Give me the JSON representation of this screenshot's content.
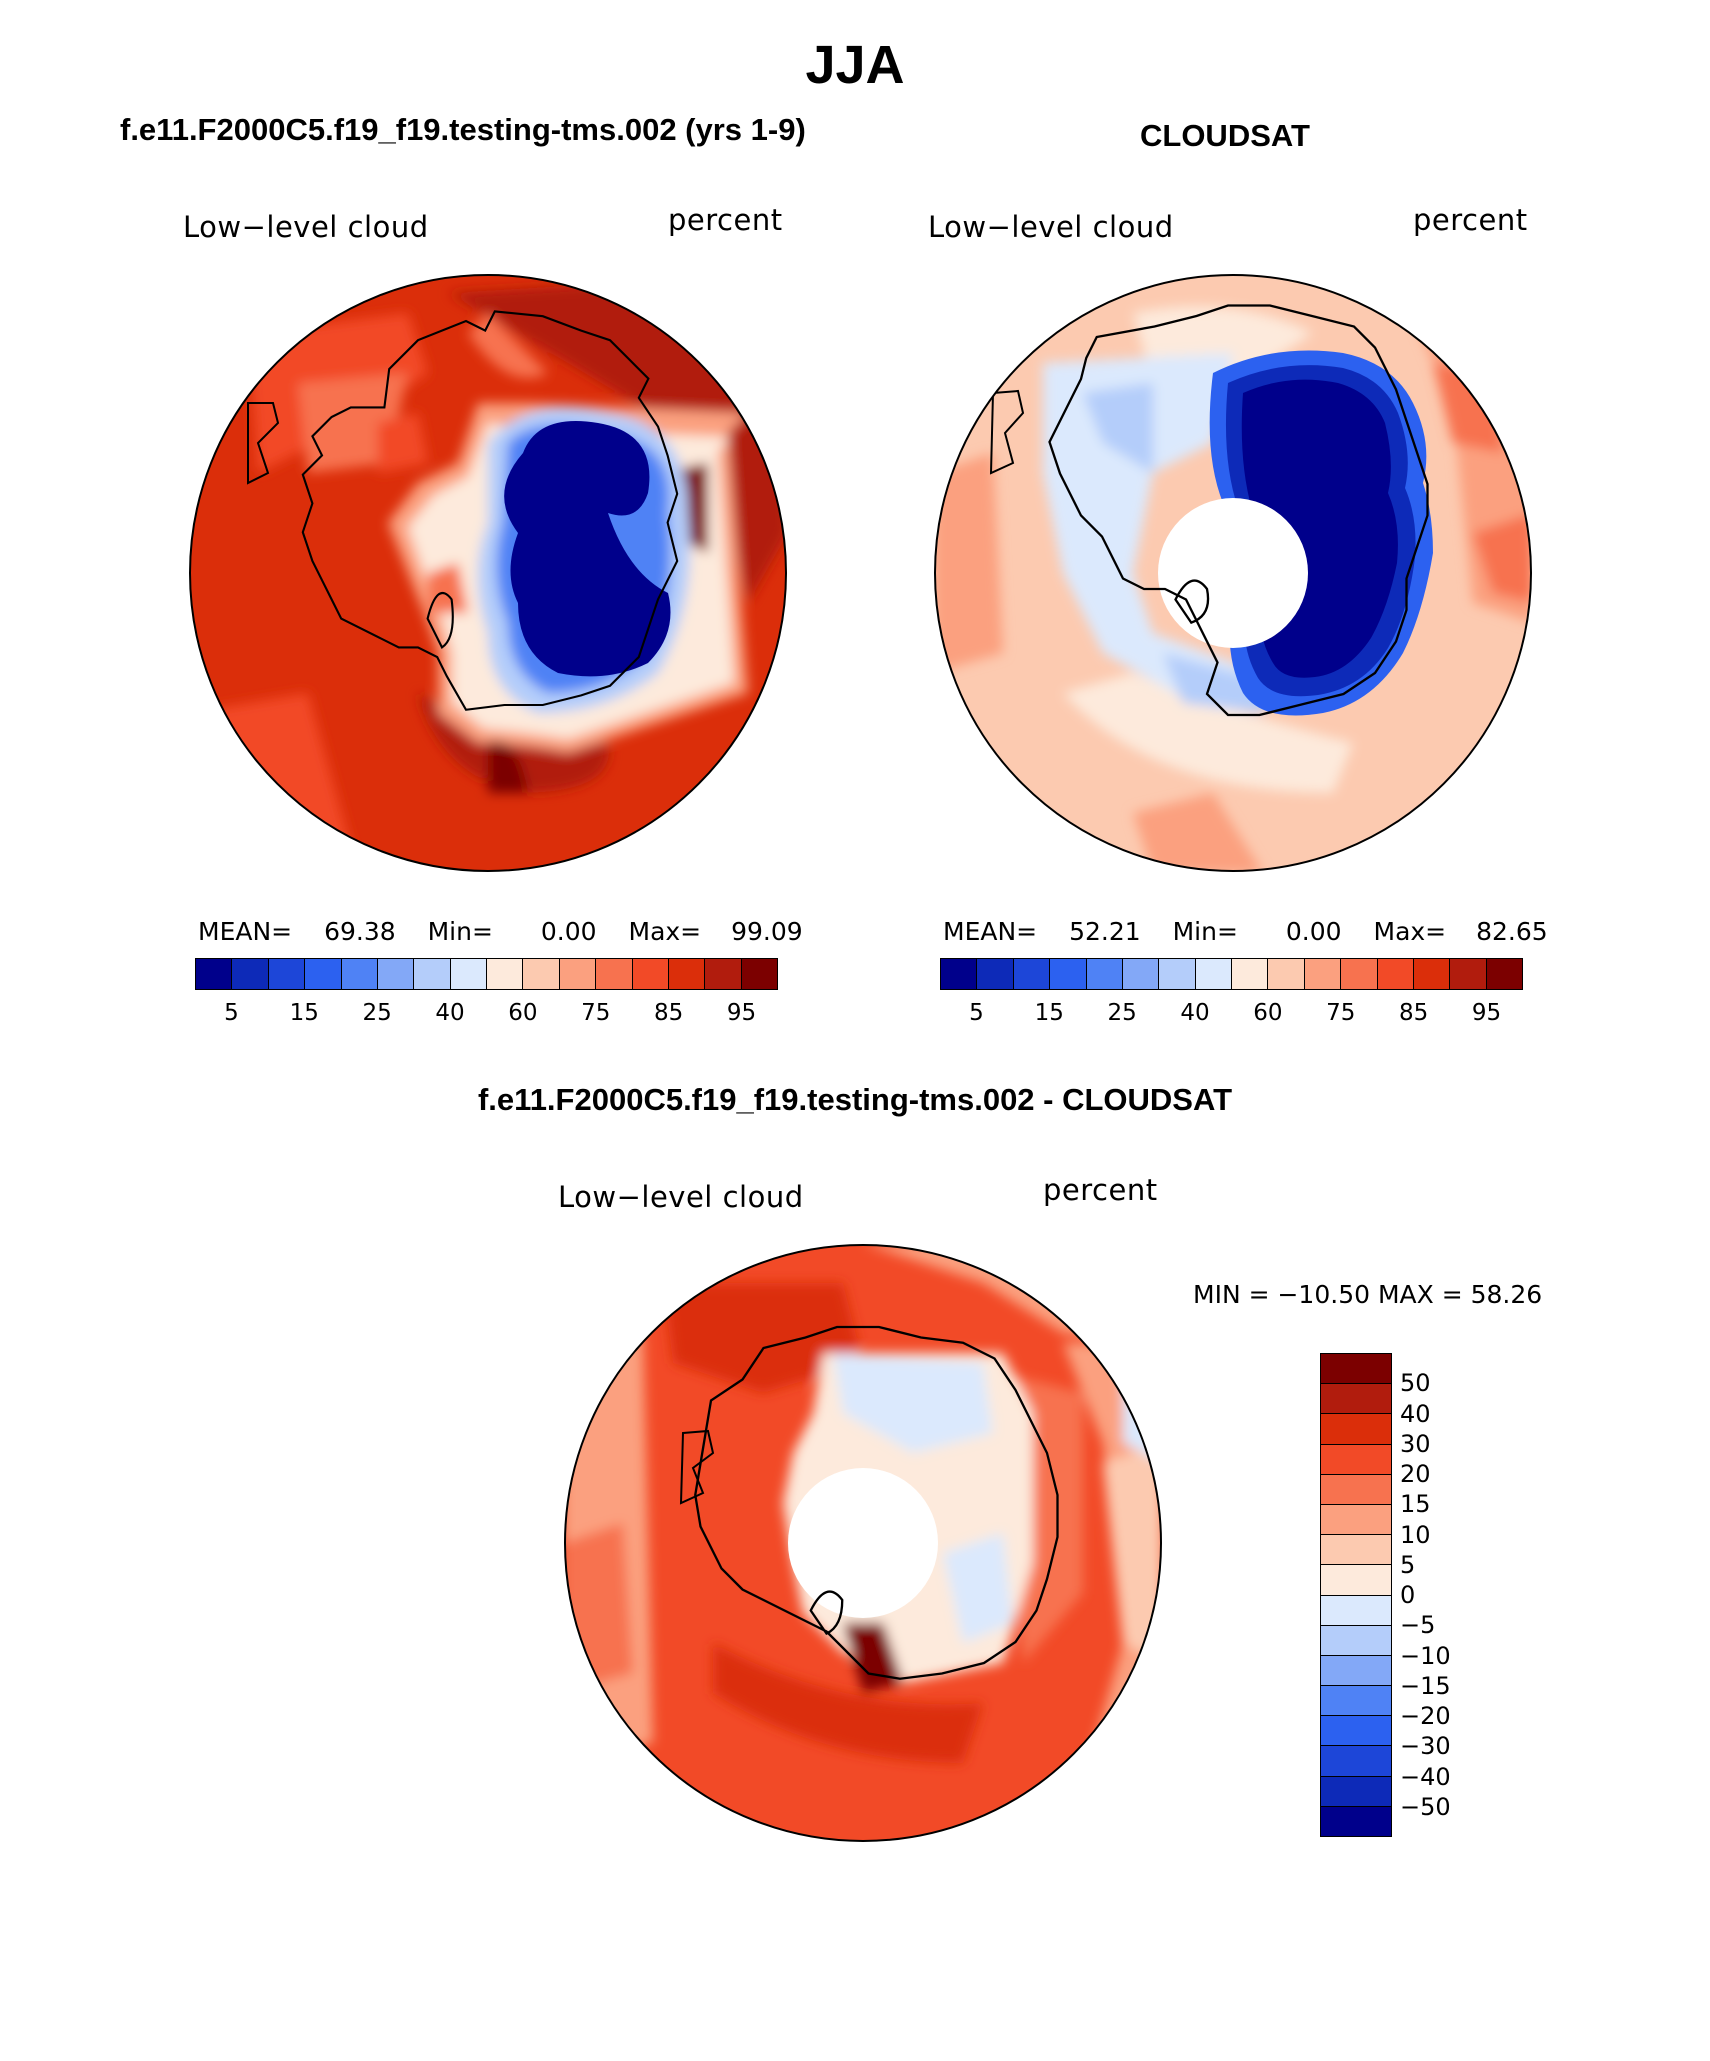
{
  "figure_title": "JJA",
  "colors": {
    "hbar_colors": [
      "#00008b",
      "#0d2ab8",
      "#1d46d8",
      "#2c61f0",
      "#4f82f5",
      "#83a8f7",
      "#b4cdfa",
      "#dbe9fd",
      "#fdeadc",
      "#fccab0",
      "#fba07f",
      "#f7724f",
      "#f24a27",
      "#db2e0a",
      "#b11c0d",
      "#7c0000"
    ],
    "vbar_colors": [
      "#7c0000",
      "#b11c0d",
      "#db2e0a",
      "#f24a27",
      "#f7724f",
      "#fba07f",
      "#fccab0",
      "#fdeadc",
      "#dbe9fd",
      "#b4cdfa",
      "#83a8f7",
      "#4f82f5",
      "#2c61f0",
      "#1d46d8",
      "#0d2ab8",
      "#00008b"
    ]
  },
  "panels": {
    "model": {
      "title": "f.e11.F2000C5.f19_f19.testing-tms.002 (yrs 1-9)",
      "left_label": "Low−level cloud",
      "right_label": "percent",
      "stats": {
        "mean_label": "MEAN=",
        "mean": "69.38",
        "min_label": "Min=",
        "min": "0.00",
        "max_label": "Max=",
        "max": "99.09"
      },
      "colorbar_ticks": [
        "5",
        "15",
        "25",
        "40",
        "60",
        "75",
        "85",
        "95"
      ]
    },
    "obs": {
      "title": "CLOUDSAT",
      "left_label": "Low−level cloud",
      "right_label": "percent",
      "stats": {
        "mean_label": "MEAN=",
        "mean": "52.21",
        "min_label": "Min=",
        "min": "0.00",
        "max_label": "Max=",
        "max": "82.65"
      },
      "colorbar_ticks": [
        "5",
        "15",
        "25",
        "40",
        "60",
        "75",
        "85",
        "95"
      ]
    },
    "diff": {
      "title": "f.e11.F2000C5.f19_f19.testing-tms.002 - CLOUDSAT",
      "left_label": "Low−level cloud",
      "right_label": "percent",
      "minmax": "MIN = −10.50  MAX =   58.26",
      "colorbar_ticks": [
        "50",
        "40",
        "30",
        "20",
        "15",
        "10",
        "5",
        "0",
        "−5",
        "−10",
        "−15",
        "−20",
        "−30",
        "−40",
        "−50"
      ]
    }
  }
}
